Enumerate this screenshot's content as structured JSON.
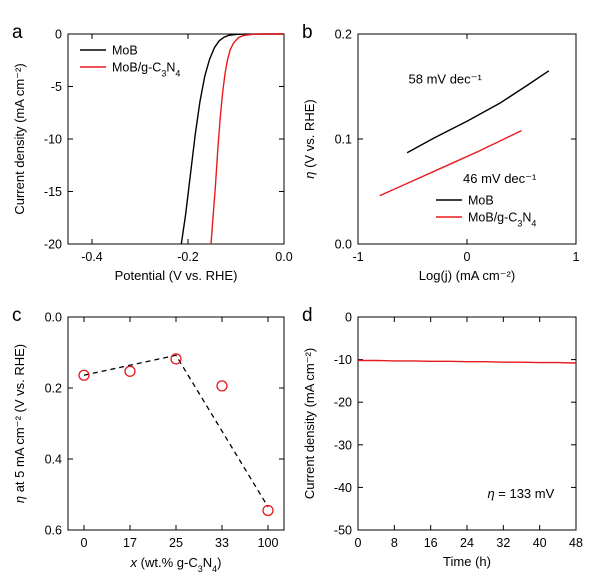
{
  "colors": {
    "black": "#000000",
    "red": "#e8191d"
  },
  "chart_data": [
    {
      "id": "a",
      "panel_label": "a",
      "type": "line",
      "xlabel": "Potential (V vs. RHE)",
      "ylabel": "Current density (mA cm⁻²)",
      "xlim": [
        -0.45,
        0.0
      ],
      "ylim": [
        -20,
        0
      ],
      "xticks": [
        -0.4,
        -0.2,
        0.0
      ],
      "xtick_labels": [
        "-0.4",
        "-0.2",
        "0.0"
      ],
      "yticks": [
        0,
        -5,
        -10,
        -15,
        -20
      ],
      "ytick_labels": [
        "0",
        "-5",
        "-10",
        "-15",
        "-20"
      ],
      "legend": "top-left",
      "series": [
        {
          "name": "MoB",
          "color": "black",
          "x": [
            -0.214,
            -0.205,
            -0.195,
            -0.185,
            -0.175,
            -0.165,
            -0.155,
            -0.145,
            -0.135,
            -0.125,
            -0.115,
            -0.1,
            -0.08,
            -0.05,
            0.0
          ],
          "y": [
            -20,
            -17.2,
            -13.4,
            -9.6,
            -6.4,
            -4.0,
            -2.4,
            -1.3,
            -0.65,
            -0.3,
            -0.12,
            -0.04,
            -0.01,
            0,
            0
          ]
        },
        {
          "name": "MoB/g-C3N4",
          "name_html": [
            "MoB/g-C",
            "3",
            "N",
            "4"
          ],
          "color": "red",
          "x": [
            -0.152,
            -0.148,
            -0.143,
            -0.138,
            -0.133,
            -0.128,
            -0.123,
            -0.118,
            -0.112,
            -0.105,
            -0.095,
            -0.085,
            -0.07,
            -0.04,
            0.0
          ],
          "y": [
            -20,
            -17.5,
            -14.5,
            -11.0,
            -8.0,
            -5.6,
            -3.8,
            -2.5,
            -1.5,
            -0.85,
            -0.35,
            -0.15,
            -0.05,
            0,
            0
          ]
        }
      ]
    },
    {
      "id": "b",
      "panel_label": "b",
      "type": "line",
      "xlabel": "Log(j) (mA cm⁻²)",
      "ylabel": "η (V vs. RHE)",
      "xlim": [
        -1,
        1
      ],
      "ylim": [
        0.0,
        0.2
      ],
      "xticks": [
        -1,
        0,
        1
      ],
      "xtick_labels": [
        "-1",
        "0",
        "1"
      ],
      "yticks": [
        0.0,
        0.1,
        0.2
      ],
      "ytick_labels": [
        "0.0",
        "0.1",
        "0.2"
      ],
      "legend": "bottom-right",
      "annotations": [
        {
          "text": "58 mV dec⁻¹",
          "x": -0.2,
          "y": 0.153,
          "color": "black"
        },
        {
          "text": "46 mV dec⁻¹",
          "x": 0.3,
          "y": 0.058,
          "color": "red"
        }
      ],
      "series": [
        {
          "name": "MoB",
          "color": "black",
          "x": [
            -0.55,
            -0.3,
            0.0,
            0.3,
            0.55,
            0.75
          ],
          "y": [
            0.087,
            0.101,
            0.117,
            0.134,
            0.151,
            0.165
          ]
        },
        {
          "name": "MoB/g-C3N4",
          "name_html": [
            "MoB/g-C",
            "3",
            "N",
            "4"
          ],
          "color": "red",
          "x": [
            -0.8,
            -0.5,
            -0.2,
            0.1,
            0.5
          ],
          "y": [
            0.046,
            0.06,
            0.074,
            0.088,
            0.108
          ]
        }
      ]
    },
    {
      "id": "c",
      "panel_label": "c",
      "type": "scatter",
      "xlabel_parts": [
        "x",
        " (wt.% g-C",
        "3",
        "N",
        "4",
        ")"
      ],
      "ylabel_parts": [
        "η",
        " at 5 mA cm⁻² (V vs. RHE)"
      ],
      "categories": [
        "0",
        "17",
        "25",
        "33",
        "100"
      ],
      "ylim": [
        0.0,
        0.6
      ],
      "y_inverted": true,
      "yticks": [
        0.0,
        0.2,
        0.4,
        0.6
      ],
      "ytick_labels": [
        "0.0",
        "0.2",
        "0.4",
        "0.6"
      ],
      "series": [
        {
          "name": "",
          "color": "red",
          "marker": "open-circle",
          "values": [
            0.164,
            0.153,
            0.118,
            0.194,
            0.545
          ]
        }
      ],
      "guide_line": {
        "style": "dashed",
        "color": "black",
        "points": [
          [
            0,
            0.164
          ],
          [
            2,
            0.108
          ],
          [
            4,
            0.535
          ]
        ]
      }
    },
    {
      "id": "d",
      "panel_label": "d",
      "type": "line",
      "xlabel": "Time (h)",
      "ylabel": "Current density (mA cm⁻²)",
      "xlim": [
        0,
        48
      ],
      "ylim": [
        -50,
        0
      ],
      "xticks": [
        0,
        8,
        16,
        24,
        32,
        40,
        48
      ],
      "xtick_labels": [
        "0",
        "8",
        "16",
        "24",
        "32",
        "40",
        "48"
      ],
      "yticks": [
        0,
        -10,
        -20,
        -30,
        -40,
        -50
      ],
      "ytick_labels": [
        "0",
        "-10",
        "-20",
        "-30",
        "-40",
        "-50"
      ],
      "annotations": [
        {
          "text_parts": [
            "η",
            " = 133 mV"
          ],
          "x": 28.5,
          "y": -42.5,
          "color": "black"
        }
      ],
      "series": [
        {
          "name": "",
          "color": "red",
          "x": [
            0,
            4,
            8,
            12,
            16,
            20,
            24,
            28,
            32,
            36,
            40,
            44,
            48
          ],
          "y": [
            -10.2,
            -10.2,
            -10.3,
            -10.3,
            -10.4,
            -10.4,
            -10.5,
            -10.5,
            -10.6,
            -10.6,
            -10.7,
            -10.7,
            -10.8
          ]
        }
      ]
    }
  ]
}
